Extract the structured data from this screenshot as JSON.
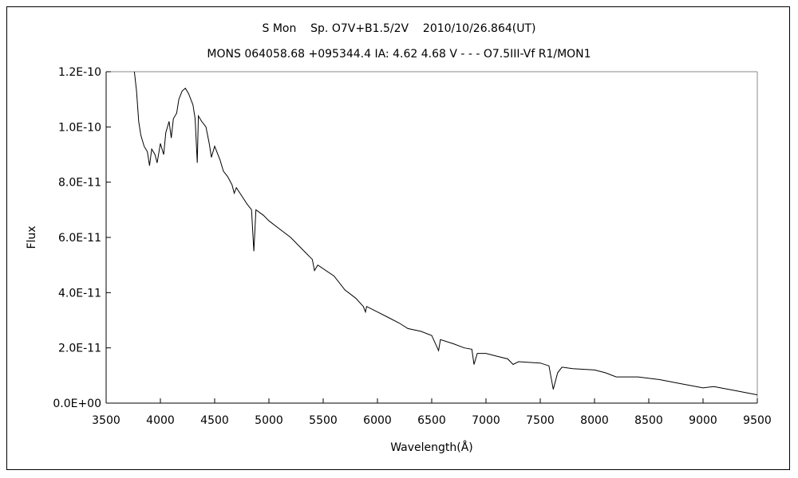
{
  "chart_data": {
    "type": "line",
    "title": "S Mon    Sp. O7V+B1.5/2V    2010/10/26.864(UT)",
    "subtitle": "MONS 064058.68 +095344.4 IA: 4.62 4.68 V - - - O7.5III-Vf R1/MON1",
    "xlabel": "Wavelength(Å)",
    "ylabel": "Flux",
    "xlim": [
      3500,
      9500
    ],
    "ylim": [
      0,
      1.2e-10
    ],
    "xticks": [
      "3500",
      "4000",
      "4500",
      "5000",
      "5500",
      "6000",
      "6500",
      "7000",
      "7500",
      "8000",
      "8500",
      "9000",
      "9500"
    ],
    "yticks": [
      "0.0E+00",
      "2.0E-11",
      "4.0E-11",
      "6.0E-11",
      "8.0E-11",
      "1.0E-10",
      "1.2E-10"
    ],
    "grid": false,
    "line_color": "#000000",
    "x": [
      3760,
      3780,
      3800,
      3820,
      3850,
      3880,
      3900,
      3920,
      3950,
      3970,
      4000,
      4030,
      4050,
      4080,
      4100,
      4120,
      4150,
      4170,
      4200,
      4230,
      4260,
      4280,
      4300,
      4320,
      4340,
      4350,
      4380,
      4420,
      4450,
      4470,
      4500,
      4550,
      4580,
      4620,
      4660,
      4680,
      4700,
      4750,
      4800,
      4840,
      4861,
      4880,
      4950,
      5000,
      5100,
      5200,
      5300,
      5400,
      5420,
      5450,
      5600,
      5700,
      5800,
      5870,
      5890,
      5900,
      6000,
      6100,
      6200,
      6280,
      6400,
      6500,
      6563,
      6580,
      6700,
      6800,
      6870,
      6890,
      6920,
      7000,
      7100,
      7200,
      7250,
      7300,
      7500,
      7580,
      7620,
      7660,
      7700,
      7800,
      8000,
      8100,
      8200,
      8400,
      8600,
      8800,
      9000,
      9100,
      9300,
      9500
    ],
    "y": [
      1.22e-10,
      1.13e-10,
      1.02e-10,
      9.7e-11,
      9.3e-11,
      9.1e-11,
      8.6e-11,
      9.2e-11,
      9e-11,
      8.7e-11,
      9.4e-11,
      9e-11,
      9.8e-11,
      1.02e-10,
      9.6e-11,
      1.03e-10,
      1.05e-10,
      1.1e-10,
      1.13e-10,
      1.14e-10,
      1.12e-10,
      1.1e-10,
      1.08e-10,
      1.03e-10,
      8.7e-11,
      1.04e-10,
      1.02e-10,
      1e-10,
      9.4e-11,
      8.9e-11,
      9.3e-11,
      8.8e-11,
      8.4e-11,
      8.2e-11,
      7.9e-11,
      7.6e-11,
      7.8e-11,
      7.5e-11,
      7.2e-11,
      7e-11,
      5.5e-11,
      7e-11,
      6.8e-11,
      6.6e-11,
      6.3e-11,
      6e-11,
      5.6e-11,
      5.2e-11,
      4.8e-11,
      5e-11,
      4.6e-11,
      4.1e-11,
      3.8e-11,
      3.5e-11,
      3.3e-11,
      3.5e-11,
      3.3e-11,
      3.1e-11,
      2.9e-11,
      2.7e-11,
      2.6e-11,
      2.45e-11,
      1.9e-11,
      2.3e-11,
      2.15e-11,
      2e-11,
      1.95e-11,
      1.4e-11,
      1.8e-11,
      1.8e-11,
      1.7e-11,
      1.6e-11,
      1.4e-11,
      1.5e-11,
      1.45e-11,
      1.35e-11,
      5e-12,
      1.1e-11,
      1.3e-11,
      1.25e-11,
      1.2e-11,
      1.1e-11,
      9.5e-12,
      9.5e-12,
      8.5e-12,
      7e-12,
      5.5e-12,
      6e-12,
      4.5e-12,
      3e-12
    ]
  }
}
